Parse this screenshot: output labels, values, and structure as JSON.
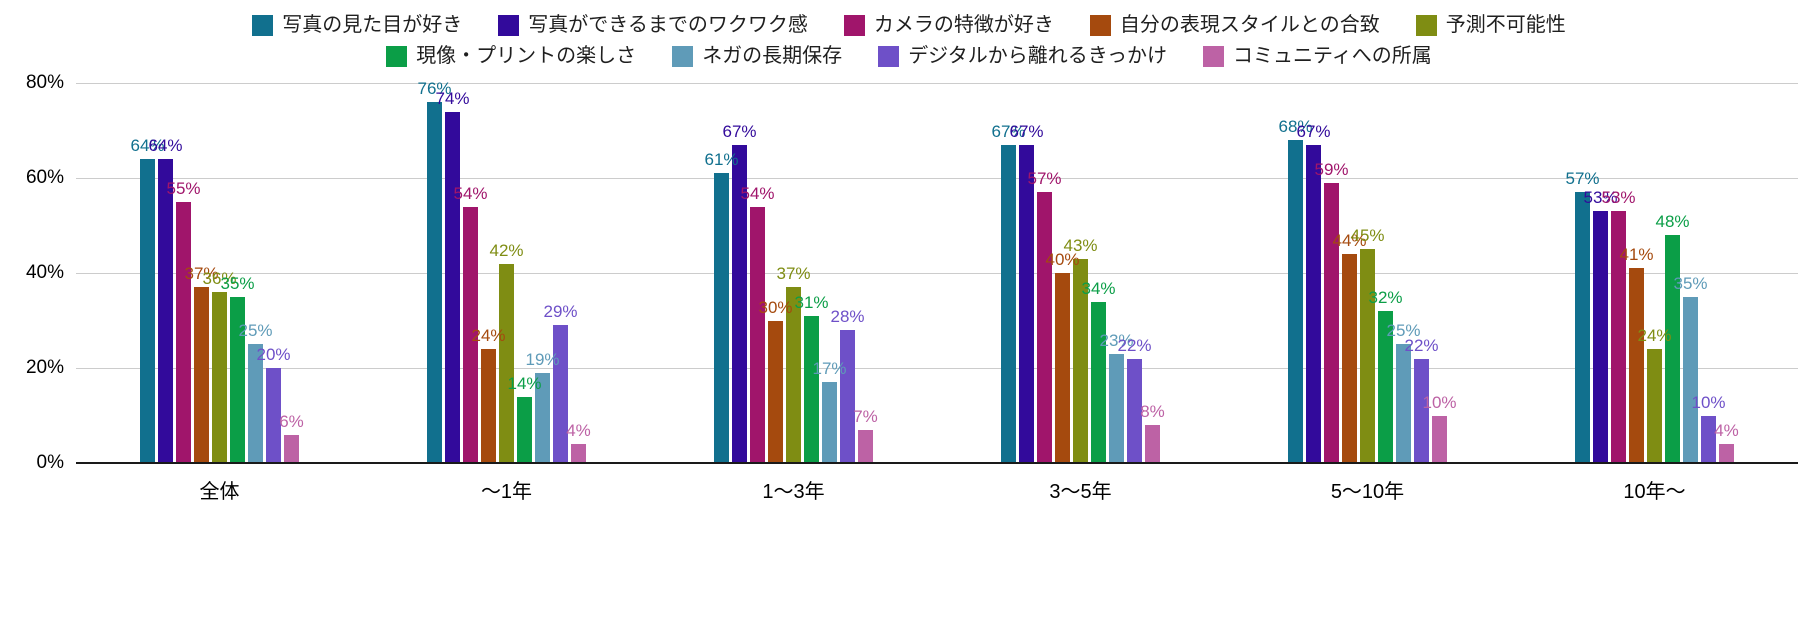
{
  "chart_data": {
    "type": "bar",
    "title": "",
    "xlabel": "",
    "ylabel": "",
    "categories": [
      "全体",
      "～1年",
      "1～3年",
      "3～5年",
      "5～10年",
      "10年～"
    ],
    "series": [
      {
        "name": "写真の見た目が好き",
        "color": "#11708e",
        "values": [
          64,
          76,
          61,
          67,
          68,
          57
        ]
      },
      {
        "name": "写真ができるまでのワクワク感",
        "color": "#320a9b",
        "values": [
          64,
          74,
          67,
          67,
          67,
          53
        ]
      },
      {
        "name": "カメラの特徴が好き",
        "color": "#a0156b",
        "values": [
          55,
          54,
          54,
          57,
          59,
          53
        ]
      },
      {
        "name": "自分の表現スタイルとの合致",
        "color": "#a54a0e",
        "values": [
          37,
          24,
          30,
          40,
          44,
          41
        ]
      },
      {
        "name": "予測不可能性",
        "color": "#7f8d13",
        "values": [
          36,
          42,
          37,
          43,
          45,
          24
        ]
      },
      {
        "name": "現像・プリントの楽しさ",
        "color": "#0b9e47",
        "values": [
          35,
          14,
          31,
          34,
          32,
          48
        ]
      },
      {
        "name": "ネガの長期保存",
        "color": "#5f9bb8",
        "values": [
          25,
          19,
          17,
          23,
          25,
          35
        ]
      },
      {
        "name": "デジタルから離れるきっかけ",
        "color": "#6e50c8",
        "values": [
          20,
          29,
          28,
          22,
          22,
          10
        ]
      },
      {
        "name": "コミュニティへの所属",
        "color": "#bd62a5",
        "values": [
          6,
          4,
          7,
          8,
          10,
          4
        ]
      }
    ],
    "ylim": [
      0,
      80
    ],
    "yticks": [
      0,
      20,
      40,
      60,
      80
    ],
    "ytick_suffix": "%",
    "value_suffix": "%",
    "grid": true,
    "grid_color": "#cccccc",
    "axis_color": "#1a1a1a",
    "legend_position": "top",
    "legend_rows": [
      [
        0,
        1,
        2,
        3,
        4
      ],
      [
        5,
        6,
        7,
        8
      ]
    ],
    "value_labels_shown": true
  }
}
